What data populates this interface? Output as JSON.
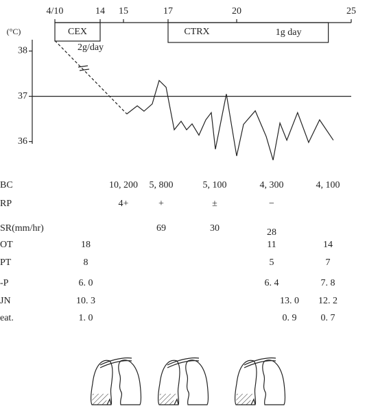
{
  "chart_data": {
    "type": "line",
    "ylabel": "(°C)",
    "xticks": [
      {
        "value": 10,
        "label": "4/10"
      },
      14,
      15,
      17,
      20,
      25
    ],
    "xlim": [
      10,
      25
    ],
    "ylim": [
      35.95,
      38.25
    ],
    "yticks": [
      36,
      37,
      38
    ],
    "reference_line": 37,
    "color": "#222222",
    "series": [
      {
        "dashed": true,
        "x": [
          10,
          15.15
        ],
        "values": [
          38.23,
          36.61
        ]
      },
      {
        "dashed": false,
        "x": [
          15.15,
          15.62,
          15.92,
          16.29,
          16.6,
          16.91,
          17.27,
          17.57,
          17.81,
          18.05,
          18.35,
          18.65,
          18.89,
          19.07,
          19.55,
          20.0,
          20.3,
          20.81,
          21.29,
          21.59,
          21.89,
          22.19,
          22.66,
          23.14,
          23.62,
          24.22
        ],
        "values": [
          36.61,
          36.79,
          36.67,
          36.83,
          37.35,
          37.2,
          36.26,
          36.45,
          36.26,
          36.39,
          36.14,
          36.48,
          36.64,
          35.83,
          37.05,
          35.68,
          36.38,
          36.68,
          36.11,
          35.59,
          36.41,
          36.03,
          36.64,
          35.98,
          36.48,
          36.03
        ]
      }
    ]
  },
  "drugs": [
    {
      "name": "CEX",
      "dose": "2g/day",
      "start": 10,
      "end": 14
    },
    {
      "name": "CTRX",
      "dose": "1g day",
      "start": 17,
      "end": 24
    }
  ],
  "labs": [
    {
      "label": "BC",
      "cells": [
        null,
        "10, 200",
        "5, 800",
        "5, 100",
        "4, 300",
        null,
        "4, 100"
      ]
    },
    {
      "label": "RP",
      "cells": [
        null,
        "4+",
        "+",
        "±",
        "−",
        null,
        null
      ]
    },
    {
      "label": "SR(mm/hr)",
      "cells": [
        null,
        null,
        "69",
        "30",
        "28",
        null,
        null
      ]
    },
    {
      "label": "OT",
      "cells": [
        "18",
        null,
        null,
        null,
        "11",
        null,
        "14"
      ]
    },
    {
      "label": "PT",
      "cells": [
        "8",
        null,
        null,
        null,
        "5",
        null,
        "7"
      ]
    },
    {
      "label": "-P",
      "cells": [
        "6. 0",
        null,
        null,
        null,
        "6. 4",
        null,
        "7. 8"
      ]
    },
    {
      "label": "JN",
      "cells": [
        "10. 3",
        null,
        null,
        null,
        null,
        "13. 0",
        "12. 2"
      ]
    },
    {
      "label": "eat.",
      "cells": [
        "1. 0",
        null,
        null,
        null,
        null,
        "0. 9",
        "0. 7"
      ]
    }
  ]
}
